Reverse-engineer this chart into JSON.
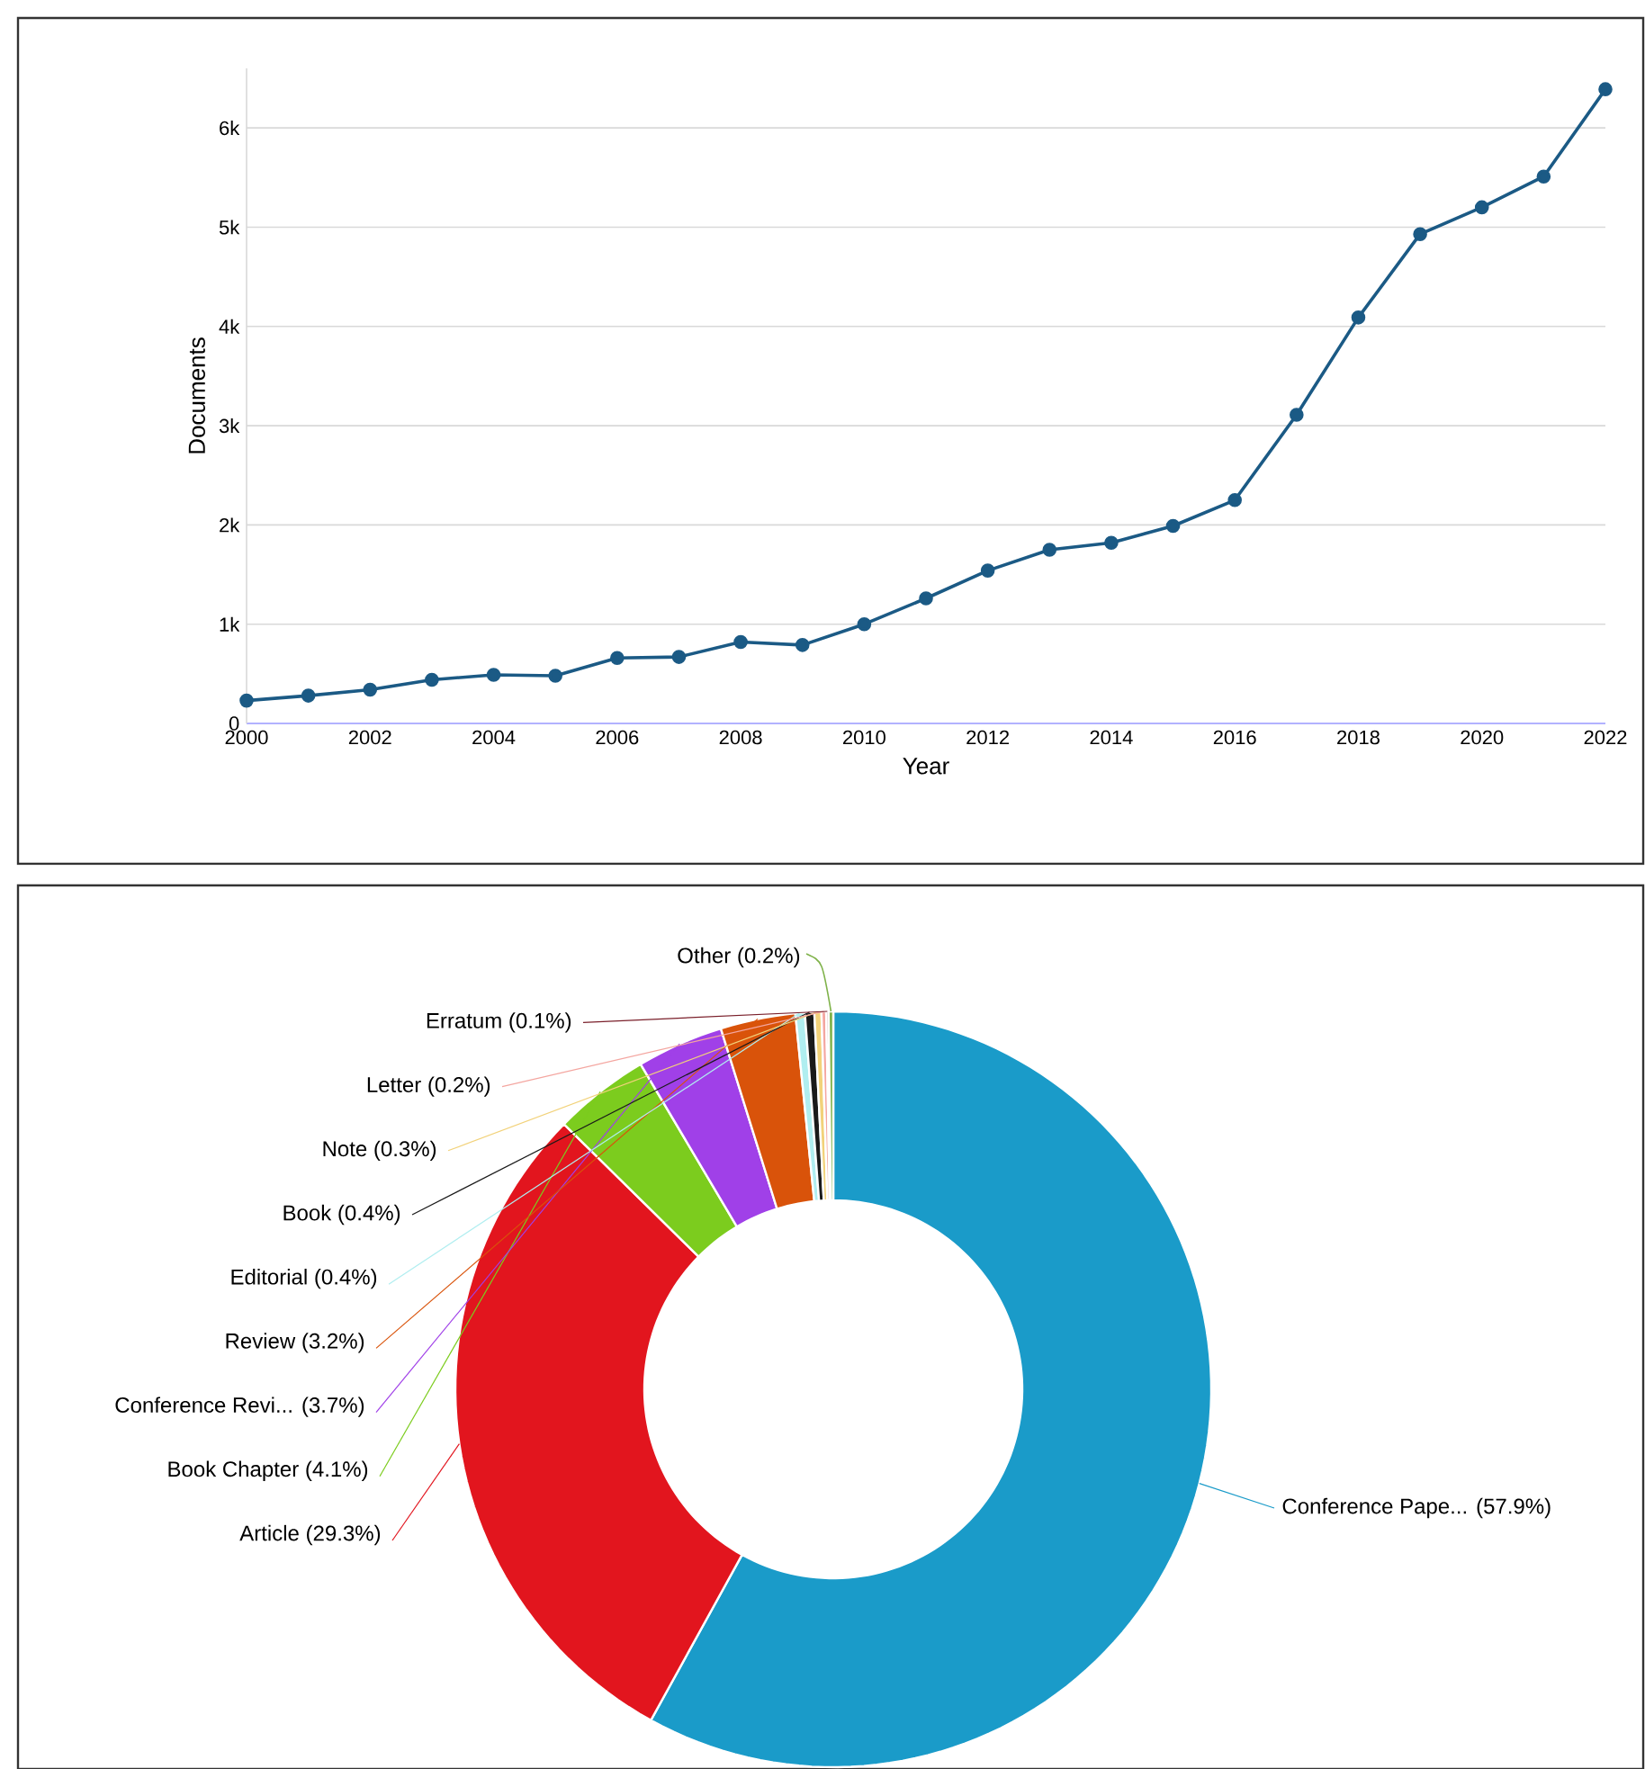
{
  "chart_data": [
    {
      "type": "line",
      "xlabel": "Year",
      "ylabel": "Documents",
      "x": [
        2000,
        2001,
        2002,
        2003,
        2004,
        2005,
        2006,
        2007,
        2008,
        2009,
        2010,
        2011,
        2012,
        2013,
        2014,
        2015,
        2016,
        2017,
        2018,
        2019,
        2020,
        2021,
        2022
      ],
      "series": [
        {
          "color": "#1b5a85",
          "values": [
            230,
            280,
            340,
            440,
            490,
            480,
            660,
            670,
            820,
            790,
            1000,
            1260,
            1540,
            1750,
            1820,
            1990,
            2250,
            3110,
            4090,
            4930,
            5200,
            5510,
            6390
          ]
        }
      ],
      "xlim": [
        2000,
        2022
      ],
      "xticks": [
        2000,
        2002,
        2004,
        2006,
        2008,
        2010,
        2012,
        2014,
        2016,
        2018,
        2020,
        2022
      ],
      "ylim": [
        0,
        6600
      ],
      "yticks": [
        0,
        {
          "value": 1000,
          "label": "1k"
        },
        {
          "value": 2000,
          "label": "2k"
        },
        {
          "value": 3000,
          "label": "3k"
        },
        {
          "value": 4000,
          "label": "4k"
        },
        {
          "value": 5000,
          "label": "5k"
        },
        {
          "value": 6000,
          "label": "6k"
        }
      ],
      "grid": "y",
      "marker": "circle",
      "line_style": "solid"
    },
    {
      "type": "donut",
      "categories": [
        "Conference Pape...",
        "Article",
        "Book Chapter",
        "Conference Revi...",
        "Review",
        "Editorial",
        "Book",
        "Note",
        "Letter",
        "Erratum",
        "Other"
      ],
      "values": [
        57.9,
        29.3,
        4.1,
        3.7,
        3.2,
        0.4,
        0.4,
        0.3,
        0.2,
        0.1,
        0.2
      ],
      "value_labels": [
        "(57.9%)",
        "(29.3%)",
        "(4.1%)",
        "(3.7%)",
        "(3.2%)",
        "(0.4%)",
        "(0.4%)",
        "(0.3%)",
        "(0.2%)",
        "(0.1%)",
        "(0.2%)"
      ],
      "colors": [
        "#1a9bc9",
        "#e2151e",
        "#7ccc1e",
        "#a040e8",
        "#d9530a",
        "#b0eef0",
        "#1a1a1a",
        "#f2d27a",
        "#f4a6a0",
        "#7a1f2a",
        "#7fb24a"
      ]
    }
  ]
}
